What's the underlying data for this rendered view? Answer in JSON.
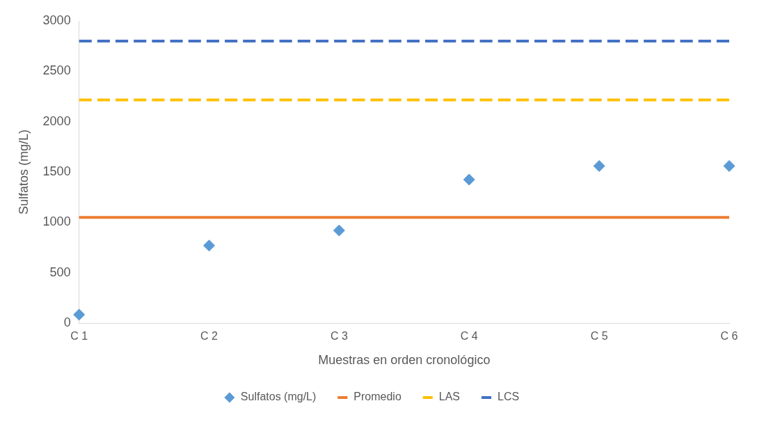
{
  "chart_data": {
    "type": "line",
    "xlabel": "Muestras en orden cronológico",
    "ylabel": "Sulfatos (mg/L)",
    "categories": [
      "C 1",
      "C 2",
      "C 3",
      "C 4",
      "C 5",
      "C 6"
    ],
    "ylim": [
      0,
      3000
    ],
    "yticks": [
      0,
      500,
      1000,
      1500,
      2000,
      2500,
      3000
    ],
    "grid": false,
    "legend": "bottom",
    "series": [
      {
        "name": "Sulfatos (mg/L)",
        "type": "scatter",
        "marker": "diamond",
        "color": "#5b9bd5",
        "values": [
          85,
          770,
          920,
          1425,
          1560,
          1560
        ]
      },
      {
        "name": "Promedio",
        "type": "line",
        "line_style": "solid",
        "color": "#ed7d31",
        "values": [
          1050,
          1050,
          1050,
          1050,
          1050,
          1050
        ]
      },
      {
        "name": "LAS",
        "type": "line",
        "line_style": "dashed",
        "color": "#ffc000",
        "values": [
          2215,
          2215,
          2215,
          2215,
          2215,
          2215
        ]
      },
      {
        "name": "LCS",
        "type": "line",
        "line_style": "dashed",
        "color": "#4472c4",
        "values": [
          2800,
          2800,
          2800,
          2800,
          2800,
          2800
        ]
      }
    ]
  }
}
